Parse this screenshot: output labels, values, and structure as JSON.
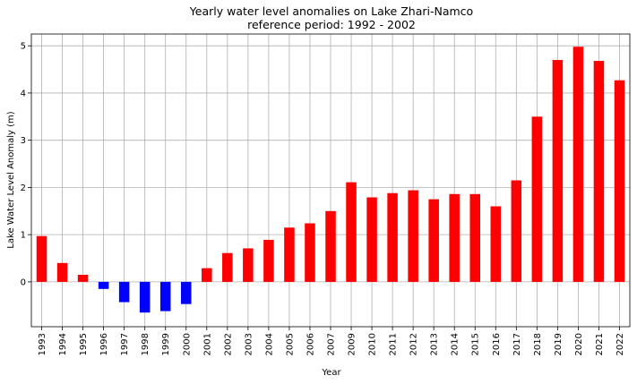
{
  "chart_data": {
    "type": "bar",
    "title": "Yearly water level anomalies on Lake Zhari-Namco",
    "subtitle": "reference period:  1992 - 2002",
    "xlabel": "Year",
    "ylabel": "Lake Water Level Anomaly (m)",
    "ylim": [
      -0.95,
      5.25
    ],
    "yticks": [
      0,
      1,
      2,
      3,
      4,
      5
    ],
    "grid": true,
    "positive_color": "#ff0000",
    "negative_color": "#0000ff",
    "categories": [
      "1993",
      "1994",
      "1995",
      "1996",
      "1997",
      "1998",
      "1999",
      "2000",
      "2001",
      "2002",
      "2003",
      "2004",
      "2005",
      "2006",
      "2007",
      "2009",
      "2010",
      "2011",
      "2012",
      "2013",
      "2014",
      "2015",
      "2016",
      "2017",
      "2018",
      "2019",
      "2020",
      "2021",
      "2022"
    ],
    "values": [
      0.97,
      0.4,
      0.15,
      -0.15,
      -0.43,
      -0.65,
      -0.62,
      -0.47,
      0.29,
      0.61,
      0.71,
      0.89,
      1.15,
      1.24,
      1.5,
      2.11,
      1.79,
      1.88,
      1.94,
      1.75,
      1.86,
      1.86,
      1.6,
      2.15,
      3.5,
      4.7,
      4.98,
      4.68,
      4.27
    ]
  }
}
